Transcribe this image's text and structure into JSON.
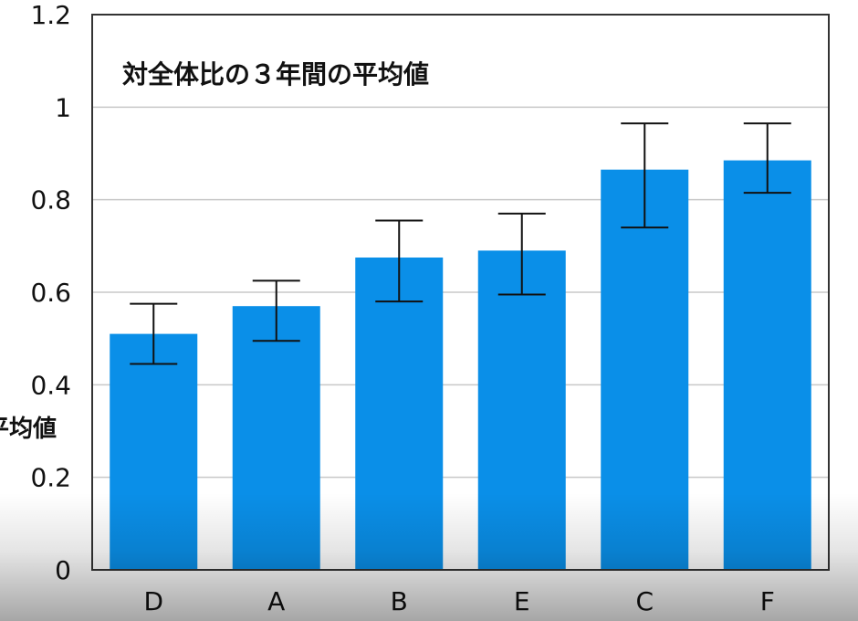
{
  "chart_data": {
    "type": "bar",
    "title": "対全体比の３年間の平均値",
    "ylabel": "平均値",
    "xlabel": "",
    "categories": [
      "D",
      "A",
      "B",
      "E",
      "C",
      "F"
    ],
    "values": [
      0.51,
      0.57,
      0.675,
      0.69,
      0.865,
      0.885
    ],
    "error_low": [
      0.445,
      0.495,
      0.58,
      0.595,
      0.74,
      0.815
    ],
    "error_high": [
      0.575,
      0.625,
      0.755,
      0.77,
      0.965,
      0.965
    ],
    "ylim": [
      0,
      1.2
    ],
    "yticks": [
      0,
      0.2,
      0.4,
      0.6,
      0.8,
      1,
      1.2
    ],
    "ytick_labels": [
      "0",
      "0.2",
      "0.4",
      "0.6",
      "0.8",
      "1",
      "1.2"
    ],
    "grid": true,
    "bar_color": "#0a8fe8",
    "error_bar_color": "#111111",
    "grid_color": "#c8c8c8"
  }
}
